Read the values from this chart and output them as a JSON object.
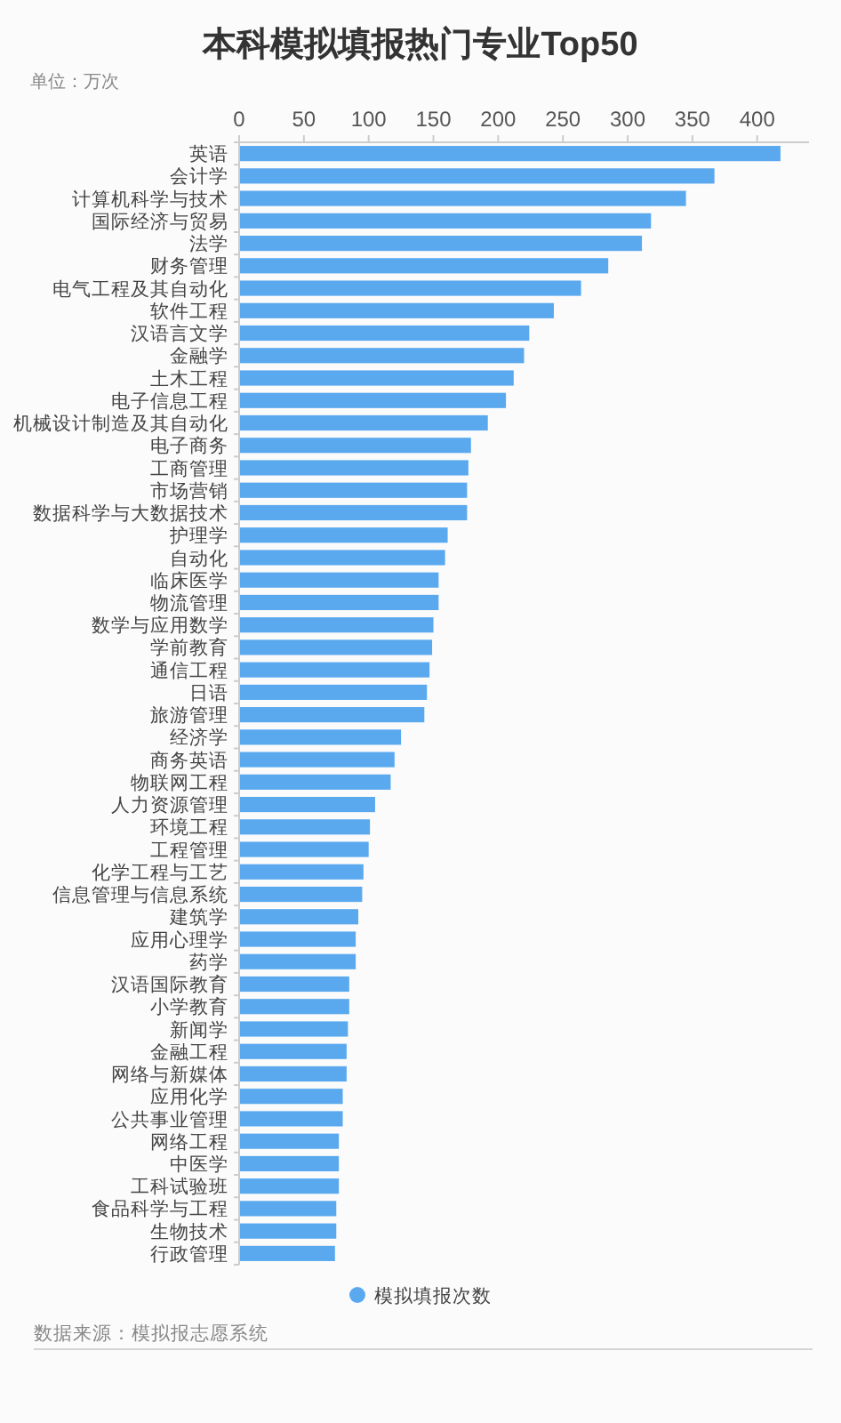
{
  "chart_data": {
    "type": "bar",
    "orientation": "horizontal",
    "title": "本科模拟填报热门专业Top50",
    "subtitle": "单位：万次",
    "categories": [
      "英语",
      "会计学",
      "计算机科学与技术",
      "国际经济与贸易",
      "法学",
      "财务管理",
      "电气工程及其自动化",
      "软件工程",
      "汉语言文学",
      "金融学",
      "土木工程",
      "电子信息工程",
      "机械设计制造及其自动化",
      "电子商务",
      "工商管理",
      "市场营销",
      "数据科学与大数据技术",
      "护理学",
      "自动化",
      "临床医学",
      "物流管理",
      "数学与应用数学",
      "学前教育",
      "通信工程",
      "日语",
      "旅游管理",
      "经济学",
      "商务英语",
      "物联网工程",
      "人力资源管理",
      "环境工程",
      "工程管理",
      "化学工程与工艺",
      "信息管理与信息系统",
      "建筑学",
      "应用心理学",
      "药学",
      "汉语国际教育",
      "小学教育",
      "新闻学",
      "金融工程",
      "网络与新媒体",
      "应用化学",
      "公共事业管理",
      "网络工程",
      "中医学",
      "工科试验班",
      "食品科学与工程",
      "生物技术",
      "行政管理"
    ],
    "series": [
      {
        "name": "模拟填报次数",
        "color": "#5aa9ef",
        "values": [
          418,
          367,
          345,
          318,
          311,
          285,
          264,
          243,
          224,
          220,
          212,
          206,
          192,
          179,
          177,
          176,
          176,
          161,
          159,
          154,
          154,
          150,
          149,
          147,
          145,
          143,
          125,
          120,
          117,
          105,
          101,
          100,
          96,
          95,
          92,
          90,
          90,
          85,
          85,
          84,
          83,
          83,
          80,
          80,
          77,
          77,
          77,
          75,
          75,
          74
        ]
      }
    ],
    "xlim": [
      0,
      440
    ],
    "xticks": [
      0,
      50,
      100,
      150,
      200,
      250,
      300,
      350,
      400
    ],
    "legend": "bottom",
    "annotations": [
      "数据来源：模拟报志愿系统"
    ]
  }
}
